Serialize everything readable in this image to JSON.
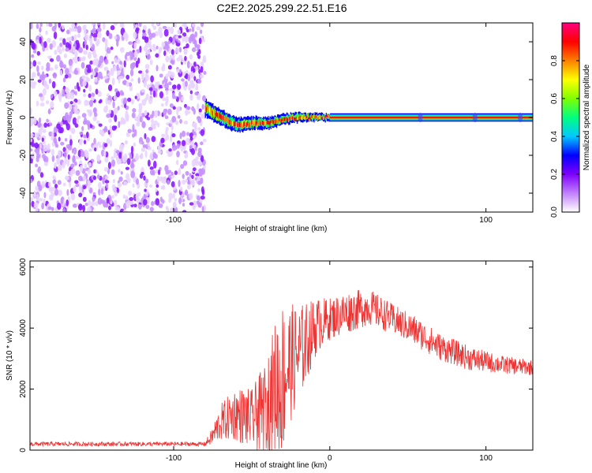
{
  "title": "C2E2.2025.299.22.51.E16",
  "chart_data": [
    {
      "type": "heatmap",
      "xlabel": "Height of straight line (km)",
      "ylabel": "Frequency (Hz)",
      "xlim": [
        -192,
        130
      ],
      "ylim": [
        -50,
        50
      ],
      "xticks": [
        -100,
        0,
        100
      ],
      "xtick_labels": [
        "-100",
        "",
        "100"
      ],
      "yticks": [
        -40,
        -20,
        0,
        20,
        40
      ],
      "ytick_labels": [
        "-40",
        "-20",
        "0",
        "20",
        "40"
      ],
      "colorbar": {
        "label": "Normalized spectral amplitude",
        "range": [
          0,
          1
        ],
        "ticks": [
          0,
          0.2,
          0.4,
          0.6,
          0.8
        ],
        "tick_labels": [
          "0.0",
          "0.2",
          "0.4",
          "0.6",
          "0.8"
        ],
        "colors": [
          "#ffffff",
          "#c080ff",
          "#7f00ff",
          "#0000ff",
          "#00c8ff",
          "#00ff80",
          "#80ff00",
          "#ffff00",
          "#ff8000",
          "#ff0000",
          "#ff0080"
        ]
      },
      "regions": [
        {
          "name": "noise",
          "x_range": [
            -192,
            -80
          ],
          "freq_range": [
            -50,
            50
          ],
          "amplitude": "0.0-0.15"
        },
        {
          "name": "transition",
          "x_range": [
            -80,
            0
          ],
          "freq_center": [
            [
              -80,
              5
            ],
            [
              -70,
              0
            ],
            [
              -60,
              -4
            ],
            [
              -50,
              -3
            ],
            [
              -40,
              -3
            ],
            [
              -30,
              -1
            ],
            [
              -20,
              0
            ],
            [
              0,
              0
            ]
          ],
          "amplitude": "0.2-0.9"
        },
        {
          "name": "carrier",
          "x_range": [
            0,
            130
          ],
          "freq": 0,
          "amplitude": "1.0"
        }
      ],
      "grid": false
    },
    {
      "type": "line",
      "xlabel": "Height of straight line (km)",
      "ylabel": "SNR (10 * v/v)",
      "xlim": [
        -192,
        130
      ],
      "ylim": [
        0,
        6200
      ],
      "xticks": [
        -100,
        0,
        100
      ],
      "xtick_labels": [
        "-100",
        "0",
        "100"
      ],
      "yticks": [
        0,
        2000,
        4000,
        6000
      ],
      "ytick_labels": [
        "0",
        "2000",
        "4000",
        "6000"
      ],
      "color": "#ee3333",
      "envelope": [
        {
          "x": -192,
          "mean": 200,
          "spread": 70
        },
        {
          "x": -80,
          "mean": 200,
          "spread": 70
        },
        {
          "x": -76,
          "mean": 400,
          "spread": 250
        },
        {
          "x": -70,
          "mean": 900,
          "spread": 600
        },
        {
          "x": -60,
          "mean": 1200,
          "spread": 900
        },
        {
          "x": -50,
          "mean": 1000,
          "spread": 1000
        },
        {
          "x": -42,
          "mean": 1300,
          "spread": 1500
        },
        {
          "x": -36,
          "mean": 2000,
          "spread": 2000
        },
        {
          "x": -32,
          "mean": 2200,
          "spread": 2800
        },
        {
          "x": -26,
          "mean": 2800,
          "spread": 2000
        },
        {
          "x": -18,
          "mean": 3300,
          "spread": 1500
        },
        {
          "x": -8,
          "mean": 4100,
          "spread": 900
        },
        {
          "x": 0,
          "mean": 4300,
          "spread": 700
        },
        {
          "x": 10,
          "mean": 4500,
          "spread": 700
        },
        {
          "x": 25,
          "mean": 4700,
          "spread": 600
        },
        {
          "x": 40,
          "mean": 4300,
          "spread": 500
        },
        {
          "x": 55,
          "mean": 3900,
          "spread": 500
        },
        {
          "x": 70,
          "mean": 3400,
          "spread": 450
        },
        {
          "x": 90,
          "mean": 3000,
          "spread": 400
        },
        {
          "x": 110,
          "mean": 2800,
          "spread": 300
        },
        {
          "x": 130,
          "mean": 2700,
          "spread": 250
        }
      ],
      "grid": false
    }
  ]
}
